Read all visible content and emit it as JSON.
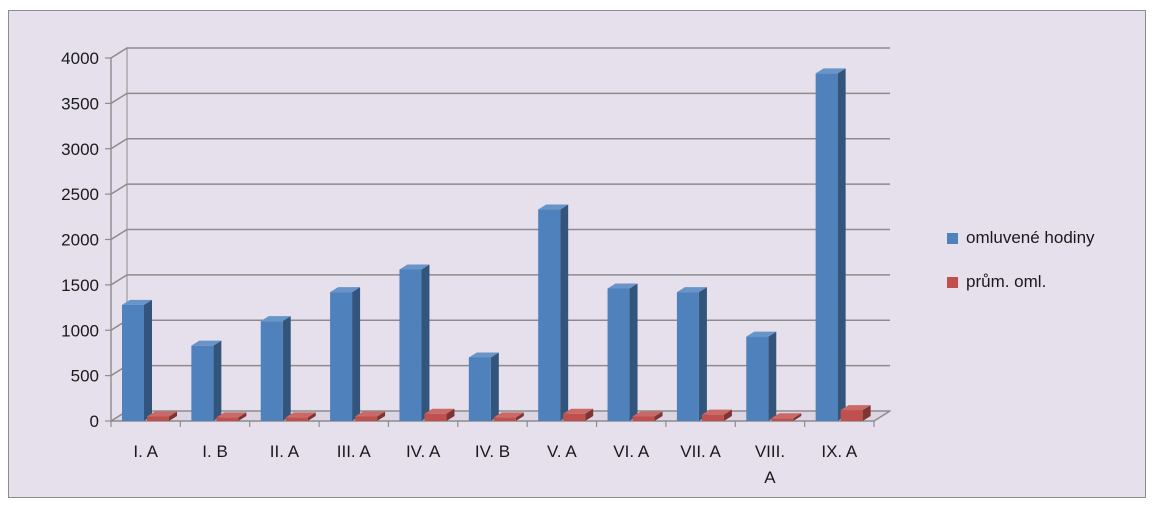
{
  "chart_data": {
    "type": "bar",
    "categories": [
      "I. A",
      "I. B",
      "II. A",
      "III. A",
      "IV. A",
      "IV. B",
      "V. A",
      "VI. A",
      "VII. A",
      "VIII. A",
      "IX. A"
    ],
    "series": [
      {
        "name": "omluvené hodiny",
        "color": "#4f81bd",
        "values": [
          1280,
          830,
          1100,
          1420,
          1670,
          700,
          2330,
          1460,
          1420,
          930,
          3830
        ]
      },
      {
        "name": "prům. oml.",
        "color": "#c0504d",
        "values": [
          50,
          40,
          40,
          50,
          80,
          40,
          80,
          50,
          70,
          30,
          120
        ]
      }
    ],
    "y_ticks": [
      "0",
      "500",
      "1000",
      "1500",
      "2000",
      "2500",
      "3000",
      "3500",
      "4000"
    ],
    "ylim": [
      0,
      4000
    ],
    "grid": true,
    "legend_position": "right",
    "title": "",
    "xlabel": "",
    "ylabel": ""
  }
}
